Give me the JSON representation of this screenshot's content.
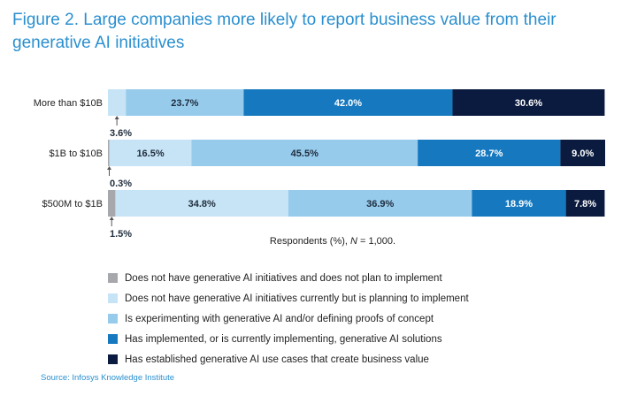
{
  "title_lines": [
    "Figure 2. Large companies more likely to report business value from their",
    "generative AI initiatives"
  ],
  "chart_data": {
    "type": "bar",
    "orientation": "horizontal",
    "stacked": true,
    "title": "Figure 2. Large companies more likely to report business value from their generative AI initiatives",
    "xlabel": "Respondents (%), N = 1,000.",
    "xlabel_parts": [
      "Respondents (%), ",
      "N",
      " = 1,000."
    ],
    "categories": [
      "More than $10B",
      "$1B to $10B",
      "$500M to $1B"
    ],
    "series": [
      {
        "name": "Does not have generative AI initiatives and does not plan to implement",
        "color": "#a6a8ab",
        "values": [
          0,
          0.3,
          1.5
        ],
        "labels": [
          "",
          "0.3%",
          "1.5%"
        ]
      },
      {
        "name": "Does not have generative AI initiatives currently but is planning to implement",
        "color": "#c7e4f6",
        "values": [
          3.6,
          16.5,
          34.8
        ],
        "labels": [
          "3.6%",
          "16.5%",
          "34.8%"
        ]
      },
      {
        "name": "Is experimenting with generative AI and/or defining proofs of concept",
        "color": "#96cbec",
        "values": [
          23.7,
          45.5,
          36.9
        ],
        "labels": [
          "23.7%",
          "45.5%",
          "36.9%"
        ]
      },
      {
        "name": "Has implemented, or is currently implementing, generative AI solutions",
        "color": "#1679c0",
        "values": [
          42.0,
          28.7,
          18.9
        ],
        "labels": [
          "42.0%",
          "28.7%",
          "18.9%"
        ]
      },
      {
        "name": "Has established generative AI use cases that create business value",
        "color": "#0b1b3f",
        "values": [
          30.6,
          9.0,
          7.8
        ],
        "labels": [
          "30.6%",
          "9.0%",
          "7.8%"
        ]
      }
    ],
    "xlim": [
      0,
      100
    ],
    "callouts": [
      {
        "category_index": 0,
        "series_index": 1,
        "text": "3.6%"
      },
      {
        "category_index": 1,
        "series_index": 0,
        "text": "0.3%"
      },
      {
        "category_index": 2,
        "series_index": 0,
        "text": "1.5%"
      }
    ]
  },
  "source": "Source: Infosys Knowledge Institute"
}
